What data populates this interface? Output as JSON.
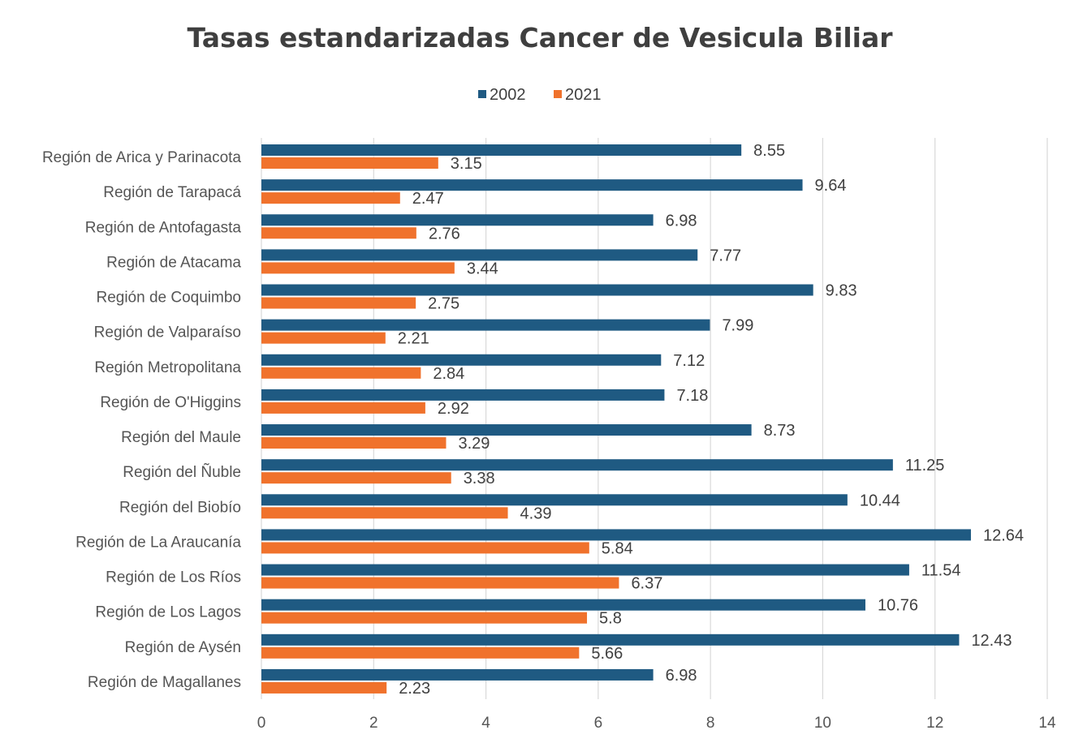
{
  "chart_data": {
    "type": "bar",
    "orientation": "horizontal",
    "title": "Tasas estandarizadas Cancer de Vesicula Biliar",
    "xlabel": "",
    "ylabel": "",
    "xlim": [
      0,
      14
    ],
    "xticks": [
      "0",
      "2",
      "4",
      "6",
      "8",
      "10",
      "12",
      "14"
    ],
    "grid": true,
    "legend_position": "top",
    "categories": [
      "Región de Arica y Parinacota",
      "Región de Tarapacá",
      "Región de Antofagasta",
      "Región de Atacama",
      "Región de Coquimbo",
      "Región de Valparaíso",
      "Región Metropolitana",
      "Región de O'Higgins",
      "Región del Maule",
      "Región del Ñuble",
      "Región del Biobío",
      "Región de La Araucanía",
      "Región de Los Ríos",
      "Región de Los Lagos",
      "Región de Aysén",
      "Región de Magallanes"
    ],
    "series": [
      {
        "name": "2002",
        "color": "#1f5a82",
        "values": [
          8.55,
          9.64,
          6.98,
          7.77,
          9.83,
          7.99,
          7.12,
          7.18,
          8.73,
          11.25,
          10.44,
          12.64,
          11.54,
          10.76,
          12.43,
          6.98
        ]
      },
      {
        "name": "2021",
        "color": "#f0722c",
        "values": [
          3.15,
          2.47,
          2.76,
          3.44,
          2.75,
          2.21,
          2.84,
          2.92,
          3.29,
          3.38,
          4.39,
          5.84,
          6.37,
          5.8,
          5.66,
          2.23
        ]
      }
    ]
  }
}
